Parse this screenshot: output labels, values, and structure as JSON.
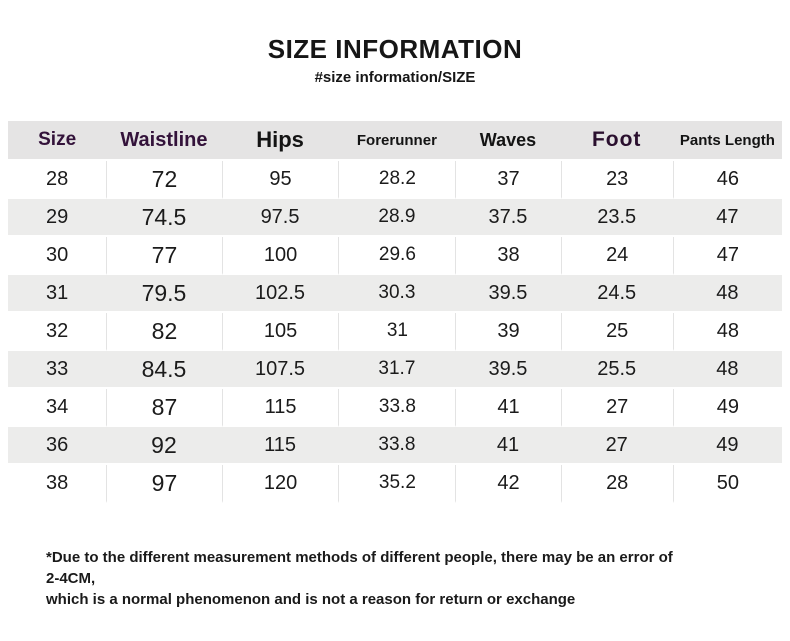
{
  "page": {
    "title": "SIZE INFORMATION",
    "subtitle": "#size information/SIZE",
    "footnote_line1": "*Due to the different measurement methods of different people, there may be an error of 2-4CM,",
    "footnote_line2": "which is a normal phenomenon and is not a reason for return or exchange"
  },
  "table": {
    "columns": [
      "Size",
      "Waistline",
      "Hips",
      "Forerunner",
      "Waves",
      "Foot",
      "Pants Length"
    ],
    "rows": [
      [
        "28",
        "72",
        "95",
        "28.2",
        "37",
        "23",
        "46"
      ],
      [
        "29",
        "74.5",
        "97.5",
        "28.9",
        "37.5",
        "23.5",
        "47"
      ],
      [
        "30",
        "77",
        "100",
        "29.6",
        "38",
        "24",
        "47"
      ],
      [
        "31",
        "79.5",
        "102.5",
        "30.3",
        "39.5",
        "24.5",
        "48"
      ],
      [
        "32",
        "82",
        "105",
        "31",
        "39",
        "25",
        "48"
      ],
      [
        "33",
        "84.5",
        "107.5",
        "31.7",
        "39.5",
        "25.5",
        "48"
      ],
      [
        "34",
        "87",
        "115",
        "33.8",
        "41",
        "27",
        "49"
      ],
      [
        "36",
        "92",
        "115",
        "33.8",
        "41",
        "27",
        "49"
      ],
      [
        "38",
        "97",
        "120",
        "35.2",
        "42",
        "28",
        "50"
      ]
    ]
  },
  "colors": {
    "header_bg": "#e5e4e4",
    "alt_row_bg": "#ececeb",
    "header_accent_purple": "#33123a",
    "text": "#141414"
  },
  "chart_data": {
    "type": "table",
    "title": "SIZE INFORMATION",
    "subtitle": "#size information/SIZE",
    "columns": [
      "Size",
      "Waistline",
      "Hips",
      "Forerunner",
      "Waves",
      "Foot",
      "Pants Length"
    ],
    "rows": [
      [
        28,
        72,
        95,
        28.2,
        37,
        23,
        46
      ],
      [
        29,
        74.5,
        97.5,
        28.9,
        37.5,
        23.5,
        47
      ],
      [
        30,
        77,
        100,
        29.6,
        38,
        24,
        47
      ],
      [
        31,
        79.5,
        102.5,
        30.3,
        39.5,
        24.5,
        48
      ],
      [
        32,
        82,
        105,
        31,
        39,
        25,
        48
      ],
      [
        33,
        84.5,
        107.5,
        31.7,
        39.5,
        25.5,
        48
      ],
      [
        34,
        87,
        115,
        33.8,
        41,
        27,
        49
      ],
      [
        36,
        92,
        115,
        33.8,
        41,
        27,
        49
      ],
      [
        38,
        97,
        120,
        35.2,
        42,
        28,
        50
      ]
    ],
    "footnote": "*Due to the different measurement methods of different people, there may be an error of 2-4CM, which is a normal phenomenon and is not a reason for return or exchange"
  }
}
